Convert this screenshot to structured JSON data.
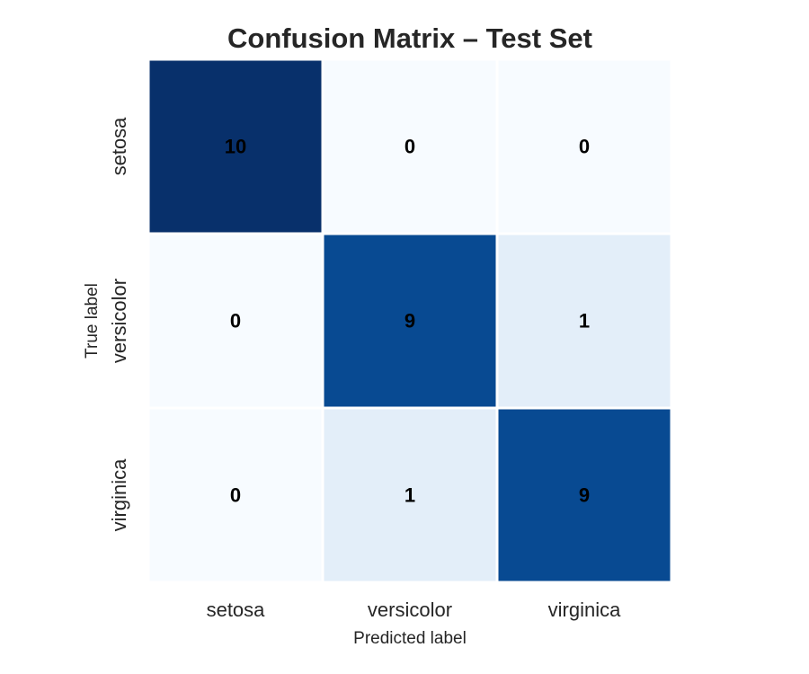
{
  "chart_data": {
    "type": "heatmap",
    "title": "Confusion Matrix – Test Set",
    "xlabel": "Predicted label",
    "ylabel": "True label",
    "x_categories": [
      "setosa",
      "versicolor",
      "virginica"
    ],
    "y_categories": [
      "setosa",
      "versicolor",
      "virginica"
    ],
    "values": [
      [
        10,
        0,
        0
      ],
      [
        0,
        9,
        1
      ],
      [
        0,
        1,
        9
      ]
    ],
    "colormap": "Blues",
    "color_range": [
      0,
      10
    ],
    "grid": false,
    "legend": "none",
    "colors": {
      "low": "#f7fbff",
      "light": "#e3eef8",
      "mid": "#08488e",
      "high": "#08306b",
      "cell_border": "#ffffff",
      "text": "#262626",
      "annotation": "#000000"
    }
  }
}
